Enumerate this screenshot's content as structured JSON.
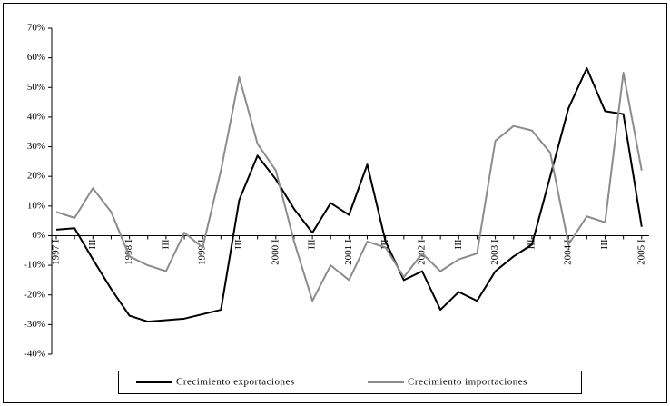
{
  "chart_data": {
    "type": "line",
    "categories": [
      "1997 I",
      null,
      "III",
      null,
      "1998 I",
      null,
      "III",
      null,
      "1999 I",
      null,
      "III",
      null,
      "2000 I",
      null,
      "III",
      null,
      "2001 I",
      null,
      "III",
      null,
      "2002 I",
      null,
      "III",
      null,
      "2003 I",
      null,
      "III",
      null,
      "2004 I",
      null,
      "III",
      null,
      "2005 I"
    ],
    "series": [
      {
        "name": "Crecimiento exportaciones",
        "color": "#000000",
        "values": [
          2,
          2.5,
          -8,
          -18,
          -27,
          -29,
          -28.5,
          -28,
          -26.5,
          -25,
          12,
          27,
          19,
          9,
          1,
          11,
          7,
          24,
          -2,
          -15,
          -12,
          -25,
          -19,
          -22,
          -12,
          -7,
          -3,
          20,
          43,
          56.5,
          42,
          41,
          3
        ]
      },
      {
        "name": "Crecimiento importaciones",
        "color": "#8c8c8c",
        "values": [
          8,
          6,
          16,
          8,
          -7,
          -10,
          -12,
          1,
          -4,
          22,
          53.5,
          31,
          22,
          -2,
          -22,
          -10,
          -15,
          -2,
          -4,
          -14,
          -6,
          -12,
          -8,
          -6,
          32,
          37,
          35.5,
          28,
          -3,
          6.5,
          4.5,
          55,
          22
        ]
      }
    ],
    "ylim": [
      -40,
      70
    ],
    "yticks": [
      {
        "value": -40,
        "label": "-40%"
      },
      {
        "value": -30,
        "label": "-30%"
      },
      {
        "value": -20,
        "label": "-20%"
      },
      {
        "value": -10,
        "label": "-10%"
      },
      {
        "value": 0,
        "label": "0%"
      },
      {
        "value": 10,
        "label": "10%"
      },
      {
        "value": 20,
        "label": "20%"
      },
      {
        "value": 30,
        "label": "30%"
      },
      {
        "value": 40,
        "label": "40%"
      },
      {
        "value": 50,
        "label": "50%"
      },
      {
        "value": 60,
        "label": "60%"
      },
      {
        "value": 70,
        "label": "70%"
      }
    ],
    "legend": "bottom"
  }
}
